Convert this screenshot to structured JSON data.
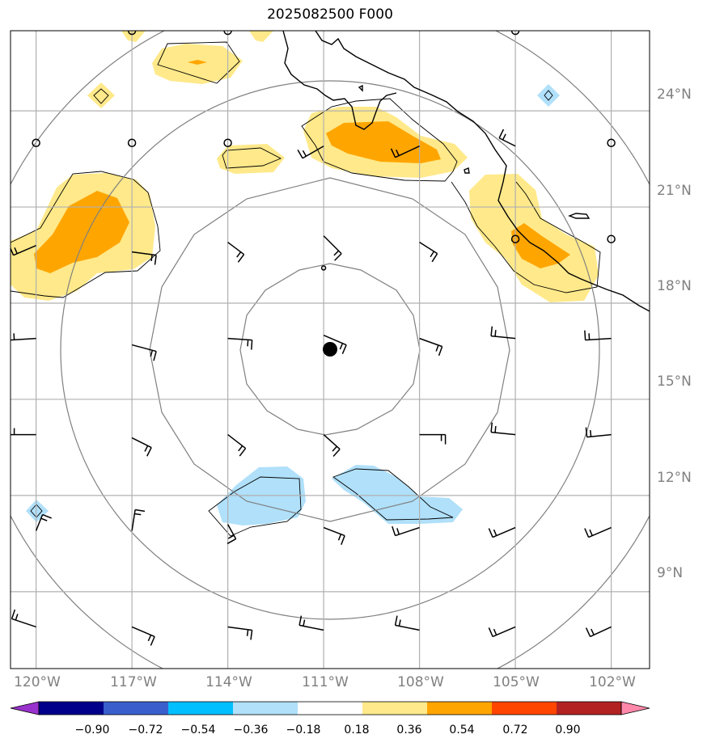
{
  "title": "2025082500 F000",
  "lat_labels": [
    "24°N",
    "21°N",
    "18°N",
    "15°N",
    "12°N",
    "9°N"
  ],
  "lon_labels": [
    "120°W",
    "117°W",
    "114°W",
    "111°W",
    "108°W",
    "105°W",
    "102°W"
  ],
  "colorbar": {
    "ticks": [
      "−0.90",
      "−0.72",
      "−0.54",
      "−0.36",
      "−0.18",
      "0.18",
      "0.36",
      "0.54",
      "0.72",
      "0.90"
    ],
    "colors": [
      "#9932cc",
      "#00008b",
      "#3a5fcd",
      "#00bfff",
      "#b0e0fa",
      "#ffffff",
      "#ffe98a",
      "#ffa500",
      "#ff4500",
      "#b22222",
      "#ff88aa"
    ]
  },
  "map_data": {
    "lat_range": [
      6.6,
      26.5
    ],
    "lon_range": [
      -120.8,
      -100.8
    ],
    "grid_lats": [
      24,
      21,
      18,
      15,
      12,
      9
    ],
    "grid_lons": [
      -120,
      -117,
      -114,
      -111,
      -108,
      -105,
      -102
    ],
    "center": {
      "lon": -110.85,
      "lat": 16.0
    },
    "colors": {
      "positive_light": "#ffe98a",
      "positive_strong": "#ffa500",
      "negative_light": "#b0e0fa",
      "ring": "#808080",
      "grid": "#b0b0b0"
    }
  }
}
